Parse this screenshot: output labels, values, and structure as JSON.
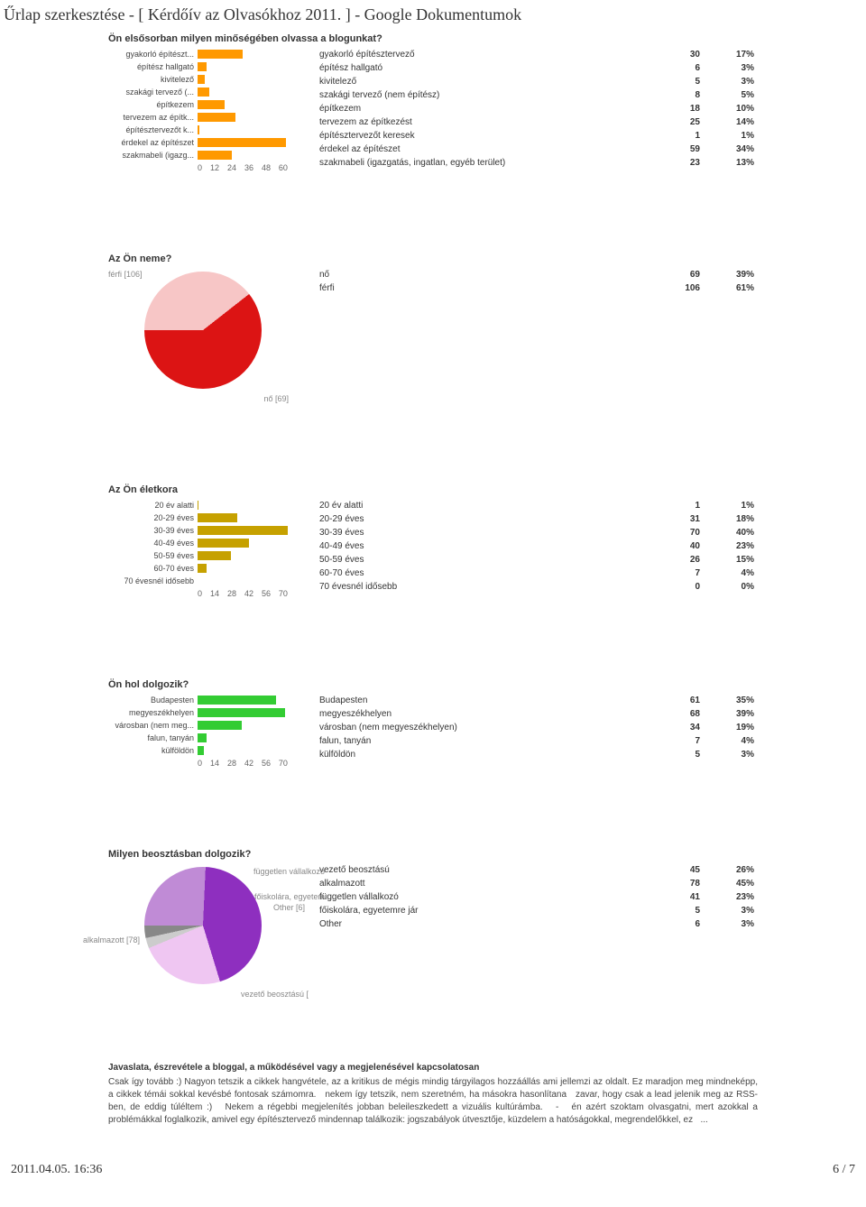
{
  "page_title": "Űrlap szerkesztése - [ Kérdőív az Olvasókhoz 2011. ] - Google Dokumentumok",
  "footer": {
    "date": "2011.04.05. 16:36",
    "pagenum": "6 / 7"
  },
  "q1": {
    "title": "Ön elsősorban milyen minőségében olvassa a blogunkat?",
    "bar_color": "#ff9900",
    "xmax": 60,
    "xtick_step": 12,
    "items": [
      {
        "cat": "gyakorló építészt...",
        "label": "gyakorló építésztervező",
        "n": 30,
        "pct": "17%"
      },
      {
        "cat": "építész hallgató",
        "label": "építész hallgató",
        "n": 6,
        "pct": "3%"
      },
      {
        "cat": "kivitelező",
        "label": "kivitelező",
        "n": 5,
        "pct": "3%"
      },
      {
        "cat": "szakági tervező (...",
        "label": "szakági tervező (nem építész)",
        "n": 8,
        "pct": "5%"
      },
      {
        "cat": "építkezem",
        "label": "építkezem",
        "n": 18,
        "pct": "10%"
      },
      {
        "cat": "tervezem az építk...",
        "label": "tervezem az építkezést",
        "n": 25,
        "pct": "14%"
      },
      {
        "cat": "építésztervezőt k...",
        "label": "építésztervezőt keresek",
        "n": 1,
        "pct": "1%"
      },
      {
        "cat": "érdekel az építészet",
        "label": "érdekel az építészet",
        "n": 59,
        "pct": "34%"
      },
      {
        "cat": "szakmabeli (igazg...",
        "label": "szakmabeli (igazgatás, ingatlan, egyéb terület)",
        "n": 23,
        "pct": "13%"
      }
    ]
  },
  "q2": {
    "title": "Az Ön neme?",
    "slices": [
      {
        "label": "nő",
        "legend": "nő [69]",
        "n": 69,
        "pct": "39%",
        "color": "#f7c6c6"
      },
      {
        "label": "férfi",
        "legend": "férfi [106]",
        "n": 106,
        "pct": "61%",
        "color": "#dc1414"
      }
    ]
  },
  "q3": {
    "title": "Az Ön életkora",
    "bar_color": "#c6a100",
    "xmax": 70,
    "xtick_step": 14,
    "items": [
      {
        "cat": "20 év alatti",
        "label": "20 év alatti",
        "n": 1,
        "pct": "1%"
      },
      {
        "cat": "20-29 éves",
        "label": "20-29 éves",
        "n": 31,
        "pct": "18%"
      },
      {
        "cat": "30-39 éves",
        "label": "30-39 éves",
        "n": 70,
        "pct": "40%"
      },
      {
        "cat": "40-49 éves",
        "label": "40-49 éves",
        "n": 40,
        "pct": "23%"
      },
      {
        "cat": "50-59 éves",
        "label": "50-59 éves",
        "n": 26,
        "pct": "15%"
      },
      {
        "cat": "60-70 éves",
        "label": "60-70 éves",
        "n": 7,
        "pct": "4%"
      },
      {
        "cat": "70 évesnél idősebb",
        "label": "70 évesnél idősebb",
        "n": 0,
        "pct": "0%"
      }
    ]
  },
  "q4": {
    "title": "Ön hol dolgozik?",
    "bar_color": "#33cc33",
    "xmax": 70,
    "xtick_step": 14,
    "items": [
      {
        "cat": "Budapesten",
        "label": "Budapesten",
        "n": 61,
        "pct": "35%"
      },
      {
        "cat": "megyeszékhelyen",
        "label": "megyeszékhelyen",
        "n": 68,
        "pct": "39%"
      },
      {
        "cat": "városban (nem meg...",
        "label": "városban (nem megyeszékhelyen)",
        "n": 34,
        "pct": "19%"
      },
      {
        "cat": "falun, tanyán",
        "label": "falun, tanyán",
        "n": 7,
        "pct": "4%"
      },
      {
        "cat": "külföldön",
        "label": "külföldön",
        "n": 5,
        "pct": "3%"
      }
    ]
  },
  "q5": {
    "title": "Milyen beosztásban dolgozik?",
    "legends": {
      "top": "független vállalkozó",
      "mid": "főiskolára, egyetem",
      "other": "Other [6]",
      "left": "alkalmazott [78]",
      "bottom": "vezető beosztású ["
    },
    "slices": [
      {
        "label": "vezető beosztású",
        "n": 45,
        "pct": "26%",
        "color": "#c08bd6"
      },
      {
        "label": "alkalmazott",
        "n": 78,
        "pct": "45%",
        "color": "#8e2fbf"
      },
      {
        "label": "független vállalkozó",
        "n": 41,
        "pct": "23%",
        "color": "#efc6f2"
      },
      {
        "label": "főiskolára, egyetemre jár",
        "n": 5,
        "pct": "3%",
        "color": "#cccccc"
      },
      {
        "label": "Other",
        "n": 6,
        "pct": "3%",
        "color": "#888888"
      }
    ]
  },
  "comments": {
    "title": "Javaslata, észrevétele a bloggal, a működésével vagy a megjelenésével kapcsolatosan",
    "body": "Csak így tovább :) Nagyon tetszik a cikkek hangvétele, az a kritikus de mégis mindig tárgyilagos hozzáállás ami jellemzi az oldalt. Ez maradjon meg mindneképp, a cikkek témái sokkal kevésbé fontosak számomra.   nekem így tetszik, nem szeretném, ha másokra hasonlítana   zavar, hogy csak a lead jelenik meg az RSS-ben, de eddig túléltem :)   Nekem a régebbi megjelenítés jobban beleileszkedett a vizuális kultúrámba.   -   én azért szoktam olvasgatni, mert azokkal a problémákkal foglalkozik, amivel egy építésztervező mindennap találkozik: jogszabályok útvesztője, küzdelem a hatóságokkal, megrendelőkkel, ez   ..."
  }
}
